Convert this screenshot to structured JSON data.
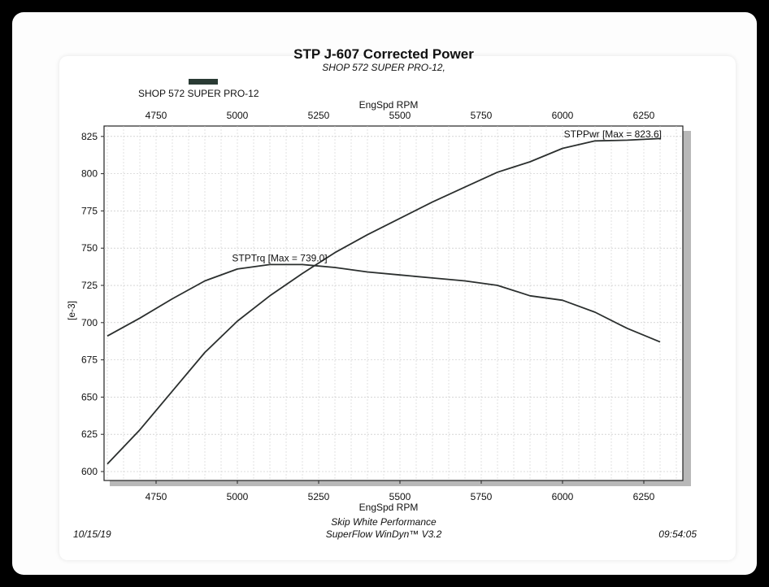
{
  "chart_data": {
    "type": "line",
    "title": "STP J-607 Corrected Power",
    "subtitle": "SHOP 572 SUPER PRO-12,",
    "legend": {
      "label": "SHOP 572 SUPER PRO-12",
      "swatch_color": "#2a3b34"
    },
    "xlabel_top": "EngSpd RPM",
    "xlabel": "EngSpd RPM",
    "ylabel": "[e-3]",
    "xlim": [
      4590,
      6370
    ],
    "ylim": [
      594,
      832
    ],
    "xticks": [
      4750,
      5000,
      5250,
      5500,
      5750,
      6000,
      6250
    ],
    "yticks": [
      600,
      625,
      650,
      675,
      700,
      725,
      750,
      775,
      800,
      825
    ],
    "series": [
      {
        "name": "STPPwr",
        "annotation": "STPPwr [Max = 823.6]",
        "x": [
          4600,
          4700,
          4800,
          4900,
          5000,
          5100,
          5200,
          5300,
          5400,
          5500,
          5600,
          5700,
          5800,
          5900,
          6000,
          6100,
          6200,
          6300
        ],
        "y": [
          605,
          628,
          654,
          680,
          701,
          718,
          733,
          747,
          759,
          770,
          781,
          791,
          801,
          808,
          817,
          822,
          822.5,
          823.6
        ]
      },
      {
        "name": "STPTrq",
        "annotation": "STPTrq [Max = 739.0]",
        "x": [
          4600,
          4700,
          4800,
          4900,
          5000,
          5100,
          5200,
          5300,
          5400,
          5500,
          5600,
          5700,
          5800,
          5900,
          6000,
          6100,
          6200,
          6300
        ],
        "y": [
          691,
          703,
          716,
          728,
          736,
          739,
          739,
          737,
          734,
          732,
          730,
          728,
          725,
          718,
          715,
          707,
          696,
          687
        ]
      }
    ],
    "grid": true,
    "footer": {
      "date": "10/15/19",
      "line1": "Skip White Performance",
      "line2": "SuperFlow WinDyn™ V3.2",
      "time": "09:54:05"
    }
  }
}
